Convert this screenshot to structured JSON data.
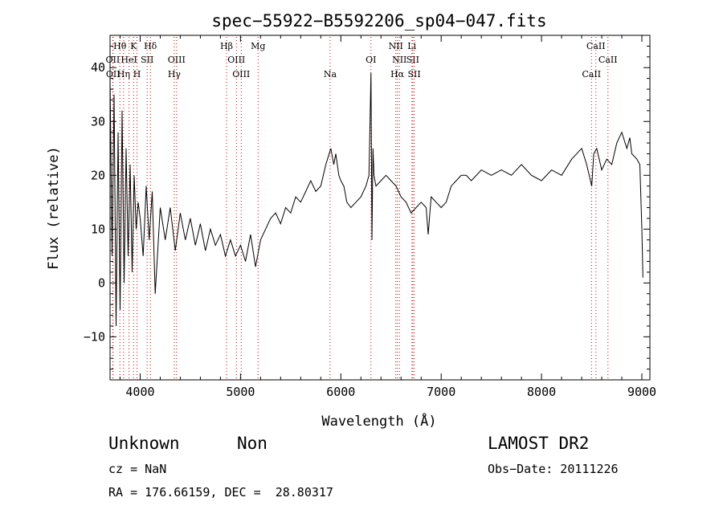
{
  "chart_data": {
    "type": "line",
    "title": "spec−55922−B5592206_sp04−047.fits",
    "xlabel": "Wavelength (Å)",
    "ylabel": "Flux (relative)",
    "xlim": [
      3700,
      9080
    ],
    "ylim": [
      -18,
      46
    ],
    "x_ticks": [
      4000,
      5000,
      6000,
      7000,
      8000,
      9000
    ],
    "x_tick_labels": [
      "4000",
      "5000",
      "6000",
      "7000",
      "8000",
      "9000"
    ],
    "y_ticks": [
      -10,
      0,
      10,
      20,
      30,
      40
    ],
    "y_tick_labels": [
      "−10",
      "0",
      "10",
      "20",
      "30",
      "40"
    ],
    "grid": false,
    "series": [
      {
        "x": [
          3700,
          3720,
          3740,
          3760,
          3780,
          3800,
          3820,
          3840,
          3860,
          3880,
          3900,
          3920,
          3940,
          3960,
          3980,
          4000,
          4030,
          4060,
          4090,
          4120,
          4150,
          4200,
          4250,
          4300,
          4350,
          4400,
          4450,
          4500,
          4550,
          4600,
          4650,
          4700,
          4750,
          4800,
          4850,
          4900,
          4950,
          5000,
          5050,
          5100,
          5150,
          5200,
          5250,
          5300,
          5350,
          5400,
          5450,
          5500,
          5550,
          5600,
          5650,
          5700,
          5750,
          5800,
          5850,
          5900,
          5930,
          5950,
          5980,
          6000,
          6030,
          6060,
          6100,
          6150,
          6200,
          6250,
          6280,
          6300,
          6310,
          6320,
          6330,
          6350,
          6400,
          6450,
          6500,
          6550,
          6600,
          6650,
          6700,
          6750,
          6800,
          6850,
          6870,
          6900,
          6950,
          7000,
          7050,
          7100,
          7150,
          7200,
          7250,
          7300,
          7400,
          7500,
          7600,
          7700,
          7800,
          7900,
          8000,
          8100,
          8200,
          8300,
          8400,
          8450,
          8500,
          8520,
          8550,
          8600,
          8650,
          8700,
          8750,
          8800,
          8850,
          8880,
          8900,
          8950,
          8980,
          9000,
          9010
        ],
        "y": [
          38,
          5,
          35,
          -8,
          28,
          -5,
          32,
          0,
          25,
          5,
          22,
          2,
          20,
          10,
          15,
          12,
          5,
          18,
          8,
          17,
          -2,
          14,
          8,
          14,
          6,
          13,
          8,
          12,
          7,
          11,
          6,
          10,
          7,
          9,
          5,
          8,
          5,
          7,
          4,
          9,
          3,
          8,
          10,
          12,
          13,
          11,
          14,
          13,
          16,
          15,
          17,
          19,
          17,
          18,
          22,
          25,
          22,
          24,
          20,
          19,
          18,
          15,
          14,
          15,
          16,
          18,
          20,
          39,
          8,
          25,
          20,
          18,
          19,
          20,
          19,
          18,
          16,
          15,
          13,
          14,
          15,
          14,
          9,
          16,
          15,
          14,
          15,
          18,
          19,
          20,
          20,
          19,
          21,
          20,
          21,
          20,
          22,
          20,
          19,
          21,
          20,
          23,
          25,
          22,
          18,
          24,
          25,
          21,
          23,
          22,
          26,
          28,
          25,
          27,
          24,
          23,
          22,
          10,
          1
        ]
      }
    ],
    "line_markers": [
      {
        "label": "Hθ",
        "x": 3798
      },
      {
        "label": "K",
        "x": 3934
      },
      {
        "label": "Hδ",
        "x": 4102
      },
      {
        "label": "Hβ",
        "x": 4861
      },
      {
        "label": "Mg",
        "x": 5175
      },
      {
        "label": "NII",
        "x": 6548
      },
      {
        "label": "Li",
        "x": 6708
      },
      {
        "label": "CaII",
        "x": 8542
      },
      {
        "label": "OII",
        "x": 3727
      },
      {
        "label": "HeI",
        "x": 3889
      },
      {
        "label": "SII",
        "x": 4070
      },
      {
        "label": "OIII",
        "x": 4363
      },
      {
        "label": "OIII",
        "x": 4959
      },
      {
        "label": "OI",
        "x": 6300
      },
      {
        "label": "NII",
        "x": 6584
      },
      {
        "label": "SII",
        "x": 6717
      },
      {
        "label": "CaII",
        "x": 8662
      },
      {
        "label": "OII",
        "x": 3730
      },
      {
        "label": "Hη",
        "x": 3835
      },
      {
        "label": "H",
        "x": 3969
      },
      {
        "label": "Hγ",
        "x": 4340
      },
      {
        "label": "OIII",
        "x": 5007
      },
      {
        "label": "Na",
        "x": 5893
      },
      {
        "label": "Hα",
        "x": 6563
      },
      {
        "label": "SII",
        "x": 6731
      },
      {
        "label": "CaII",
        "x": 8498
      }
    ],
    "colors": {
      "axes": "#000000",
      "line": "#000000",
      "marker": "#cc0000"
    }
  },
  "info": {
    "class": "Unknown",
    "subclass": "Non",
    "survey": "LAMOST DR2",
    "cz": "cz = NaN",
    "obs_date": "Obs−Date: 20111226",
    "coords": "RA = 176.66159, DEC =  28.80317"
  }
}
